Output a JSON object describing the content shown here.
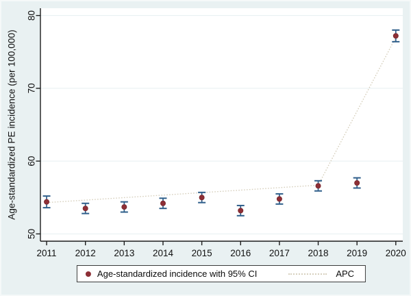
{
  "colors": {
    "figure_background": "#e9f1f2",
    "plot_background": "#ffffff",
    "grid": "#e6eff1",
    "axis": "#1c1c1c",
    "marker": "#8d2f36",
    "marker_edge": "#7a272d",
    "ci_bar": "#2e5e8a",
    "apc_line": "#d6cfbc",
    "text": "#111111"
  },
  "chart_data": {
    "type": "scatter",
    "title": "",
    "xlabel": "",
    "ylabel": "Age-standardized PE incidence (per 100,000)",
    "x": [
      2011,
      2012,
      2013,
      2014,
      2015,
      2016,
      2017,
      2018,
      2019,
      2020
    ],
    "series": [
      {
        "name": "Age-standardized incidence with 95% CI",
        "type": "scatter-with-ci",
        "values": [
          54.4,
          53.5,
          53.7,
          54.2,
          55.0,
          53.2,
          54.8,
          56.6,
          57.0,
          77.2
        ],
        "ci_low": [
          53.6,
          52.8,
          53.0,
          53.5,
          54.3,
          52.5,
          54.1,
          55.9,
          56.3,
          76.4
        ],
        "ci_high": [
          55.2,
          54.2,
          54.4,
          54.9,
          55.7,
          53.9,
          55.5,
          57.3,
          57.7,
          78.0
        ]
      },
      {
        "name": "APC",
        "type": "dotted-line",
        "x": [
          2011,
          2018,
          2020
        ],
        "values": [
          54.3,
          56.7,
          77.0
        ]
      }
    ],
    "xticks": [
      2011,
      2012,
      2013,
      2014,
      2015,
      2016,
      2017,
      2018,
      2019,
      2020
    ],
    "yticks": [
      50,
      60,
      70,
      80
    ],
    "xlim": [
      2010.84,
      2020.18
    ],
    "ylim": [
      49,
      81
    ],
    "grid": true,
    "legend_position": "bottom-center"
  }
}
